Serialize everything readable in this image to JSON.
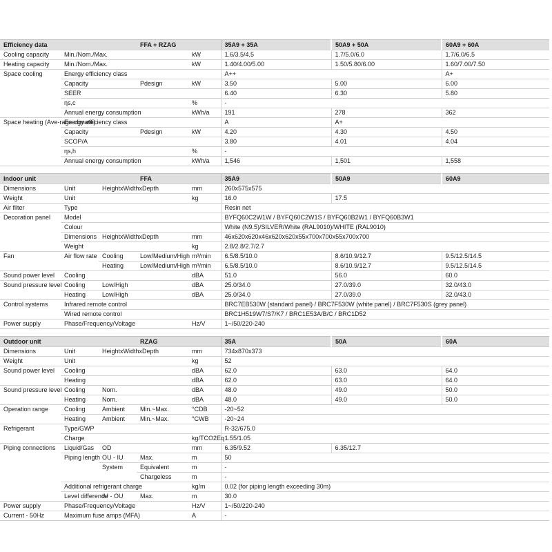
{
  "colors": {
    "header_background": "#dfdfdf",
    "grid_line": "#d2d2d2",
    "text": "#1c1c1c",
    "page_background": "#ffffff"
  },
  "tables": [
    {
      "name": "efficiency-data-table",
      "header": {
        "title": "Efficiency data",
        "model": "FFA + RZAG",
        "cols": [
          "35A9 + 35A",
          "50A9 + 50A",
          "60A9 + 60A"
        ]
      },
      "rows": [
        [
          {
            "t": "Cooling capacity",
            "k": "l"
          },
          {
            "t": "Min./Nom./Max.",
            "k": "l",
            "c": 3
          },
          {
            "t": "kW",
            "k": "u"
          },
          {
            "t": "1.6/3.5/4.5",
            "k": "d"
          },
          {
            "t": "1.7/5.0/6.0",
            "k": "d"
          },
          {
            "t": "1.7/6.0/6.5",
            "k": "d"
          }
        ],
        [
          {
            "t": "Heating capacity",
            "k": "l"
          },
          {
            "t": "Min./Nom./Max.",
            "k": "l",
            "c": 3
          },
          {
            "t": "kW",
            "k": "u"
          },
          {
            "t": "1.40/4.00/5.00",
            "k": "d"
          },
          {
            "t": "1.50/5.80/6.00",
            "k": "d"
          },
          {
            "t": "1.60/7.00/7.50",
            "k": "d"
          }
        ],
        [
          {
            "t": "Space cooling",
            "k": "l",
            "r": 5
          },
          {
            "t": "Energy efficiency class",
            "k": "l",
            "c": 3
          },
          {
            "t": "",
            "k": "u"
          },
          {
            "t": "A++",
            "k": "d",
            "c": 2
          },
          {
            "t": "A+",
            "k": "d"
          }
        ],
        [
          {
            "t": "Capacity",
            "k": "l",
            "c": 2
          },
          {
            "t": "Pdesign",
            "k": "l"
          },
          {
            "t": "kW",
            "k": "u"
          },
          {
            "t": "3.50",
            "k": "d"
          },
          {
            "t": "5.00",
            "k": "d"
          },
          {
            "t": "6.00",
            "k": "d"
          }
        ],
        [
          {
            "t": "SEER",
            "k": "l",
            "c": 3
          },
          {
            "t": "",
            "k": "u"
          },
          {
            "t": "6.40",
            "k": "d"
          },
          {
            "t": "6.30",
            "k": "d"
          },
          {
            "t": "5.80",
            "k": "d"
          }
        ],
        [
          {
            "t": "ηs,c",
            "k": "l",
            "c": 3
          },
          {
            "t": "%",
            "k": "u"
          },
          {
            "t": "-",
            "k": "d",
            "c": 3
          }
        ],
        [
          {
            "t": "Annual energy consumption",
            "k": "l",
            "c": 3
          },
          {
            "t": "kWh/a",
            "k": "u"
          },
          {
            "t": "191",
            "k": "d"
          },
          {
            "t": "278",
            "k": "d"
          },
          {
            "t": "362",
            "k": "d"
          }
        ],
        [
          {
            "t": "Space heating (Ave-rage climate)",
            "k": "lw",
            "r": 5
          },
          {
            "t": "Energy efficiency class",
            "k": "l",
            "c": 3
          },
          {
            "t": "",
            "k": "u"
          },
          {
            "t": "A",
            "k": "d"
          },
          {
            "t": "A+",
            "k": "d",
            "c": 2
          }
        ],
        [
          {
            "t": "Capacity",
            "k": "l",
            "c": 2
          },
          {
            "t": "Pdesign",
            "k": "l"
          },
          {
            "t": "kW",
            "k": "u"
          },
          {
            "t": "4.20",
            "k": "d"
          },
          {
            "t": "4.30",
            "k": "d"
          },
          {
            "t": "4.50",
            "k": "d"
          }
        ],
        [
          {
            "t": "SCOP/A",
            "k": "l",
            "c": 3
          },
          {
            "t": "",
            "k": "u"
          },
          {
            "t": "3.80",
            "k": "d"
          },
          {
            "t": "4.01",
            "k": "d"
          },
          {
            "t": "4.04",
            "k": "d"
          }
        ],
        [
          {
            "t": "ηs,h",
            "k": "l",
            "c": 3
          },
          {
            "t": "%",
            "k": "u"
          },
          {
            "t": "-",
            "k": "d",
            "c": 3
          }
        ],
        [
          {
            "t": "Annual energy consumption",
            "k": "l",
            "c": 3
          },
          {
            "t": "kWh/a",
            "k": "u"
          },
          {
            "t": "1,546",
            "k": "d"
          },
          {
            "t": "1,501",
            "k": "d"
          },
          {
            "t": "1,558",
            "k": "d"
          }
        ]
      ]
    },
    {
      "name": "indoor-unit-table",
      "header": {
        "title": "Indoor unit",
        "model": "FFA",
        "cols": [
          "35A9",
          "50A9",
          "60A9"
        ]
      },
      "rows": [
        [
          {
            "t": "Dimensions",
            "k": "l"
          },
          {
            "t": "Unit",
            "k": "l"
          },
          {
            "t": "HeightxWidthxDepth",
            "k": "l",
            "c": 2
          },
          {
            "t": "mm",
            "k": "u"
          },
          {
            "t": "260x575x575",
            "k": "d",
            "c": 3
          }
        ],
        [
          {
            "t": "Weight",
            "k": "l"
          },
          {
            "t": "Unit",
            "k": "l",
            "c": 3
          },
          {
            "t": "kg",
            "k": "u"
          },
          {
            "t": "16.0",
            "k": "d"
          },
          {
            "t": "17.5",
            "k": "d",
            "c": 2
          }
        ],
        [
          {
            "t": "Air filter",
            "k": "l"
          },
          {
            "t": "Type",
            "k": "l",
            "c": 3
          },
          {
            "t": "",
            "k": "u"
          },
          {
            "t": "Resin net",
            "k": "d",
            "c": 3
          }
        ],
        [
          {
            "t": "Decoration panel",
            "k": "l",
            "r": 4
          },
          {
            "t": "Model",
            "k": "l",
            "c": 3
          },
          {
            "t": "",
            "k": "u"
          },
          {
            "t": "BYFQ60C2W1W / BYFQ60C2W1S / BYFQ60B2W1 / BYFQ60B3W1",
            "k": "d",
            "c": 3
          }
        ],
        [
          {
            "t": "Colour",
            "k": "l",
            "c": 3
          },
          {
            "t": "",
            "k": "u"
          },
          {
            "t": "White (N9.5)/SILVER/White (RAL9010)/WHITE (RAL9010)",
            "k": "d",
            "c": 3
          }
        ],
        [
          {
            "t": "Dimensions",
            "k": "l"
          },
          {
            "t": "HeightxWidthxDepth",
            "k": "l",
            "c": 2
          },
          {
            "t": "mm",
            "k": "u"
          },
          {
            "t": "46x620x620x46x620x620x55x700x700x55x700x700",
            "k": "d",
            "c": 3
          }
        ],
        [
          {
            "t": "Weight",
            "k": "l",
            "c": 3
          },
          {
            "t": "kg",
            "k": "u"
          },
          {
            "t": "2.8/2.8/2.7/2.7",
            "k": "d",
            "c": 3
          }
        ],
        [
          {
            "t": "Fan",
            "k": "l",
            "r": 2
          },
          {
            "t": "Air flow rate",
            "k": "l",
            "r": 2
          },
          {
            "t": "Cooling",
            "k": "l"
          },
          {
            "t": "Low/Medium/High",
            "k": "l"
          },
          {
            "t": "m³/min",
            "k": "u"
          },
          {
            "t": "6.5/8.5/10.0",
            "k": "d"
          },
          {
            "t": "8.6/10.9/12.7",
            "k": "d"
          },
          {
            "t": "9.5/12.5/14.5",
            "k": "d"
          }
        ],
        [
          {
            "t": "Heating",
            "k": "l"
          },
          {
            "t": "Low/Medium/High",
            "k": "l"
          },
          {
            "t": "m³/min",
            "k": "u"
          },
          {
            "t": "6.5/8.5/10.0",
            "k": "d"
          },
          {
            "t": "8.6/10.9/12.7",
            "k": "d"
          },
          {
            "t": "9.5/12.5/14.5",
            "k": "d"
          }
        ],
        [
          {
            "t": "Sound power level",
            "k": "l"
          },
          {
            "t": "Cooling",
            "k": "l",
            "c": 3
          },
          {
            "t": "dBA",
            "k": "u"
          },
          {
            "t": "51.0",
            "k": "d"
          },
          {
            "t": "56.0",
            "k": "d"
          },
          {
            "t": "60.0",
            "k": "d"
          }
        ],
        [
          {
            "t": "Sound pressure level",
            "k": "l",
            "r": 2
          },
          {
            "t": "Cooling",
            "k": "l"
          },
          {
            "t": "Low/High",
            "k": "l",
            "c": 2
          },
          {
            "t": "dBA",
            "k": "u"
          },
          {
            "t": "25.0/34.0",
            "k": "d"
          },
          {
            "t": "27.0/39.0",
            "k": "d"
          },
          {
            "t": "32.0/43.0",
            "k": "d"
          }
        ],
        [
          {
            "t": "Heating",
            "k": "l"
          },
          {
            "t": "Low/High",
            "k": "l",
            "c": 2
          },
          {
            "t": "dBA",
            "k": "u"
          },
          {
            "t": "25.0/34.0",
            "k": "d"
          },
          {
            "t": "27.0/39.0",
            "k": "d"
          },
          {
            "t": "32.0/43.0",
            "k": "d"
          }
        ],
        [
          {
            "t": "Control systems",
            "k": "l",
            "r": 2
          },
          {
            "t": "Infrared remote control",
            "k": "l",
            "c": 3
          },
          {
            "t": "",
            "k": "u"
          },
          {
            "t": "BRC7EB530W (standard panel) / BRC7F530W (white panel) / BRC7F530S (grey panel)",
            "k": "d",
            "c": 3
          }
        ],
        [
          {
            "t": "Wired remote control",
            "k": "l",
            "c": 3
          },
          {
            "t": "",
            "k": "u"
          },
          {
            "t": "BRC1H519W7/S7/K7 / BRC1E53A/B/C / BRC1D52",
            "k": "d",
            "c": 3
          }
        ],
        [
          {
            "t": "Power supply",
            "k": "l"
          },
          {
            "t": "Phase/Frequency/Voltage",
            "k": "l",
            "c": 3
          },
          {
            "t": "Hz/V",
            "k": "u"
          },
          {
            "t": "1~/50/220-240",
            "k": "d",
            "c": 3
          }
        ]
      ]
    },
    {
      "name": "outdoor-unit-table",
      "header": {
        "title": "Outdoor unit",
        "model": "RZAG",
        "cols": [
          "35A",
          "50A",
          "60A"
        ]
      },
      "rows": [
        [
          {
            "t": "Dimensions",
            "k": "l"
          },
          {
            "t": "Unit",
            "k": "l"
          },
          {
            "t": "HeightxWidthxDepth",
            "k": "l",
            "c": 2
          },
          {
            "t": "mm",
            "k": "u"
          },
          {
            "t": "734x870x373",
            "k": "d",
            "c": 3
          }
        ],
        [
          {
            "t": "Weight",
            "k": "l"
          },
          {
            "t": "Unit",
            "k": "l",
            "c": 3
          },
          {
            "t": "kg",
            "k": "u"
          },
          {
            "t": "52",
            "k": "d",
            "c": 3
          }
        ],
        [
          {
            "t": "Sound power level",
            "k": "l",
            "r": 2
          },
          {
            "t": "Cooling",
            "k": "l",
            "c": 3
          },
          {
            "t": "dBA",
            "k": "u"
          },
          {
            "t": "62.0",
            "k": "d"
          },
          {
            "t": "63.0",
            "k": "d"
          },
          {
            "t": "64.0",
            "k": "d"
          }
        ],
        [
          {
            "t": "Heating",
            "k": "l",
            "c": 3
          },
          {
            "t": "dBA",
            "k": "u"
          },
          {
            "t": "62.0",
            "k": "d"
          },
          {
            "t": "63.0",
            "k": "d"
          },
          {
            "t": "64.0",
            "k": "d"
          }
        ],
        [
          {
            "t": "Sound pressure level",
            "k": "l",
            "r": 2
          },
          {
            "t": "Cooling",
            "k": "l"
          },
          {
            "t": "Nom.",
            "k": "l",
            "c": 2
          },
          {
            "t": "dBA",
            "k": "u"
          },
          {
            "t": "48.0",
            "k": "d"
          },
          {
            "t": "49.0",
            "k": "d"
          },
          {
            "t": "50.0",
            "k": "d"
          }
        ],
        [
          {
            "t": "Heating",
            "k": "l"
          },
          {
            "t": "Nom.",
            "k": "l",
            "c": 2
          },
          {
            "t": "dBA",
            "k": "u"
          },
          {
            "t": "48.0",
            "k": "d"
          },
          {
            "t": "49.0",
            "k": "d"
          },
          {
            "t": "50.0",
            "k": "d"
          }
        ],
        [
          {
            "t": "Operation range",
            "k": "l",
            "r": 2
          },
          {
            "t": "Cooling",
            "k": "l"
          },
          {
            "t": "Ambient",
            "k": "l"
          },
          {
            "t": "Min.~Max.",
            "k": "l"
          },
          {
            "t": "°CDB",
            "k": "u"
          },
          {
            "t": "-20~52",
            "k": "d",
            "c": 3
          }
        ],
        [
          {
            "t": "Heating",
            "k": "l"
          },
          {
            "t": "Ambient",
            "k": "l"
          },
          {
            "t": "Min.~Max.",
            "k": "l"
          },
          {
            "t": "°CWB",
            "k": "u"
          },
          {
            "t": "-20~24",
            "k": "d",
            "c": 3
          }
        ],
        [
          {
            "t": "Refrigerant",
            "k": "l",
            "r": 2
          },
          {
            "t": "Type/GWP",
            "k": "l",
            "c": 3
          },
          {
            "t": "",
            "k": "u"
          },
          {
            "t": "R-32/675.0",
            "k": "d",
            "c": 3
          }
        ],
        [
          {
            "t": "Charge",
            "k": "l",
            "c": 3
          },
          {
            "t": "kg/TCO2Eq",
            "k": "us"
          },
          {
            "t": "1.55/1.05",
            "k": "d",
            "c": 3
          }
        ],
        [
          {
            "t": "Piping connections",
            "k": "l",
            "r": 6
          },
          {
            "t": "Liquid/Gas",
            "k": "l"
          },
          {
            "t": "OD",
            "k": "l",
            "c": 2
          },
          {
            "t": "mm",
            "k": "u"
          },
          {
            "t": "6.35/9.52",
            "k": "d"
          },
          {
            "t": "6.35/12.7",
            "k": "d",
            "c": 2
          }
        ],
        [
          {
            "t": "Piping length",
            "k": "lw",
            "r": 3
          },
          {
            "t": "OU - IU",
            "k": "l"
          },
          {
            "t": "Max.",
            "k": "l"
          },
          {
            "t": "m",
            "k": "u"
          },
          {
            "t": "50",
            "k": "d",
            "c": 3
          }
        ],
        [
          {
            "t": "System",
            "k": "l",
            "r": 2
          },
          {
            "t": "Equivalent",
            "k": "l"
          },
          {
            "t": "m",
            "k": "u"
          },
          {
            "t": "-",
            "k": "d",
            "c": 3
          }
        ],
        [
          {
            "t": "Chargeless",
            "k": "l"
          },
          {
            "t": "m",
            "k": "u"
          },
          {
            "t": "-",
            "k": "d",
            "c": 3
          }
        ],
        [
          {
            "t": "Additional refrigerant charge",
            "k": "l",
            "c": 3
          },
          {
            "t": "kg/m",
            "k": "u"
          },
          {
            "t": "0.02 (for piping length exceeding 30m)",
            "k": "d",
            "c": 3
          }
        ],
        [
          {
            "t": "Level difference",
            "k": "ls"
          },
          {
            "t": "IU - OU",
            "k": "l"
          },
          {
            "t": "Max.",
            "k": "l"
          },
          {
            "t": "m",
            "k": "u"
          },
          {
            "t": "30.0",
            "k": "d",
            "c": 3
          }
        ],
        [
          {
            "t": "Power supply",
            "k": "l"
          },
          {
            "t": "Phase/Frequency/Voltage",
            "k": "l",
            "c": 3
          },
          {
            "t": "Hz/V",
            "k": "u"
          },
          {
            "t": "1~/50/220-240",
            "k": "d",
            "c": 3
          }
        ],
        [
          {
            "t": "Current - 50Hz",
            "k": "l"
          },
          {
            "t": "Maximum fuse amps (MFA)",
            "k": "l",
            "c": 3
          },
          {
            "t": "A",
            "k": "u"
          },
          {
            "t": "-",
            "k": "d",
            "c": 3
          }
        ]
      ]
    }
  ]
}
